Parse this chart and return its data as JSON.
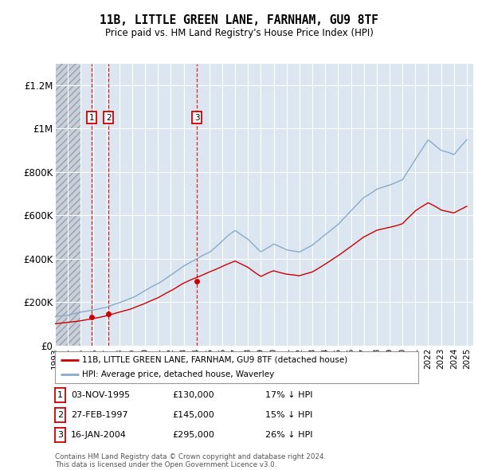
{
  "title": "11B, LITTLE GREEN LANE, FARNHAM, GU9 8TF",
  "subtitle": "Price paid vs. HM Land Registry's House Price Index (HPI)",
  "ylabel_ticks": [
    "£0",
    "£200K",
    "£400K",
    "£600K",
    "£800K",
    "£1M",
    "£1.2M"
  ],
  "ytick_values": [
    0,
    200000,
    400000,
    600000,
    800000,
    1000000,
    1200000
  ],
  "ylim": [
    0,
    1300000
  ],
  "xlim_start": 1993.0,
  "xlim_end": 2025.5,
  "hatch_end_year": 1995.0,
  "purchases": [
    {
      "label": "1",
      "date": 1995.83,
      "price": 130000,
      "text": "03-NOV-1995",
      "amount": "£130,000",
      "pct": "17% ↓ HPI"
    },
    {
      "label": "2",
      "date": 1997.16,
      "price": 145000,
      "text": "27-FEB-1997",
      "amount": "£145,000",
      "pct": "15% ↓ HPI"
    },
    {
      "label": "3",
      "date": 2004.04,
      "price": 295000,
      "text": "16-JAN-2004",
      "amount": "£295,000",
      "pct": "26% ↓ HPI"
    }
  ],
  "legend_property_label": "11B, LITTLE GREEN LANE, FARNHAM, GU9 8TF (detached house)",
  "legend_hpi_label": "HPI: Average price, detached house, Waverley",
  "footer": "Contains HM Land Registry data © Crown copyright and database right 2024.\nThis data is licensed under the Open Government Licence v3.0.",
  "property_line_color": "#cc0000",
  "hpi_line_color": "#88aacc",
  "background_color": "#dce6f0",
  "hatch_color": "#c8d0dc",
  "grid_color": "#ffffff",
  "purchase_marker_color": "#cc0000",
  "purchase_box_color": "#cc0000",
  "hpi_anchors_x": [
    1993,
    1995,
    1997,
    1999,
    2001,
    2003,
    2005,
    2007,
    2008,
    2009,
    2010,
    2011,
    2012,
    2013,
    2014,
    2015,
    2016,
    2017,
    2018,
    2019,
    2020,
    2021,
    2022,
    2023,
    2024,
    2025
  ],
  "hpi_anchors_y": [
    130000,
    155000,
    175000,
    220000,
    285000,
    365000,
    430000,
    530000,
    490000,
    430000,
    470000,
    440000,
    430000,
    460000,
    510000,
    560000,
    620000,
    680000,
    720000,
    740000,
    760000,
    860000,
    950000,
    900000,
    880000,
    950000
  ],
  "prop_anchors_x": [
    1993,
    1995,
    1997,
    1999,
    2001,
    2003,
    2005,
    2007,
    2008,
    2009,
    2010,
    2011,
    2012,
    2013,
    2014,
    2015,
    2016,
    2017,
    2018,
    2019,
    2020,
    2021,
    2022,
    2023,
    2024,
    2025
  ],
  "prop_anchors_y": [
    100000,
    115000,
    135000,
    170000,
    220000,
    285000,
    340000,
    390000,
    360000,
    320000,
    345000,
    330000,
    320000,
    340000,
    375000,
    415000,
    455000,
    500000,
    530000,
    545000,
    560000,
    620000,
    660000,
    625000,
    610000,
    640000
  ]
}
